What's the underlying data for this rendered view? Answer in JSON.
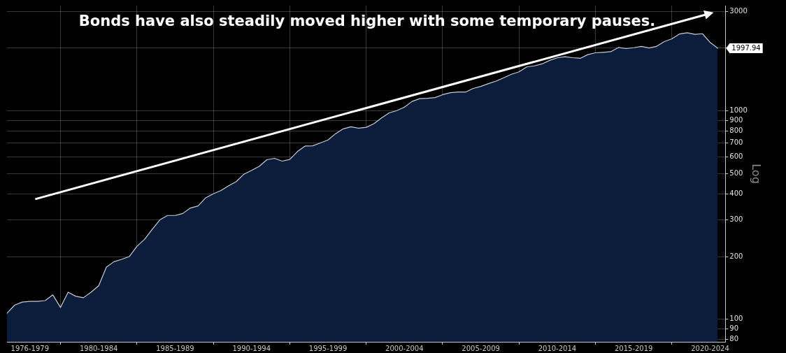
{
  "chart_data": {
    "type": "area",
    "title": "Bonds have also steadily moved higher with some temporary pauses.",
    "ylabel": "Log",
    "log": true,
    "grid": true,
    "legend": false,
    "categories": [
      null,
      null,
      null,
      "1976-1979",
      null,
      null,
      null,
      null,
      null,
      null,
      null,
      null,
      "1980-1984",
      null,
      null,
      null,
      null,
      null,
      null,
      null,
      null,
      null,
      "1985-1989",
      null,
      null,
      null,
      null,
      null,
      null,
      null,
      null,
      null,
      "1990-1994",
      null,
      null,
      null,
      null,
      null,
      null,
      null,
      null,
      null,
      "1995-1999",
      null,
      null,
      null,
      null,
      null,
      null,
      null,
      null,
      null,
      "2000-2004",
      null,
      null,
      null,
      null,
      null,
      null,
      null,
      null,
      null,
      "2005-2009",
      null,
      null,
      null,
      null,
      null,
      null,
      null,
      null,
      null,
      "2010-2014",
      null,
      null,
      null,
      null,
      null,
      null,
      null,
      null,
      null,
      "2015-2019",
      null,
      null,
      null,
      null,
      null,
      null,
      null,
      null,
      null,
      "2020-2024",
      null,
      null
    ],
    "series": [
      {
        "color": "#0b1d3a",
        "values": [
          107,
          117,
          121,
          122,
          122,
          123,
          131,
          114,
          135,
          129,
          127,
          135,
          145,
          178,
          189,
          194,
          200,
          224,
          242,
          270,
          300,
          315,
          315,
          322,
          342,
          350,
          383,
          400,
          415,
          437,
          458,
          497,
          518,
          542,
          583,
          592,
          574,
          585,
          638,
          678,
          680,
          702,
          725,
          778,
          820,
          839,
          826,
          834,
          868,
          925,
          978,
          1003,
          1042,
          1110,
          1145,
          1150,
          1158,
          1196,
          1222,
          1231,
          1231,
          1282,
          1310,
          1352,
          1390,
          1442,
          1498,
          1540,
          1625,
          1644,
          1680,
          1747,
          1797,
          1820,
          1800,
          1787,
          1862,
          1900,
          1910,
          1923,
          2014,
          1990,
          2010,
          2040,
          2004,
          2040,
          2150,
          2218,
          2339,
          2370,
          2330,
          2345,
          2130,
          1997.94,
          null
        ]
      }
    ],
    "ylim": [
      78,
      3200
    ],
    "yticks": [
      80,
      90,
      100,
      200,
      300,
      400,
      500,
      600,
      700,
      800,
      900,
      1000,
      {
        "value": 2000,
        "label": null
      },
      3000
    ],
    "annotations": [
      "1997.94"
    ]
  }
}
